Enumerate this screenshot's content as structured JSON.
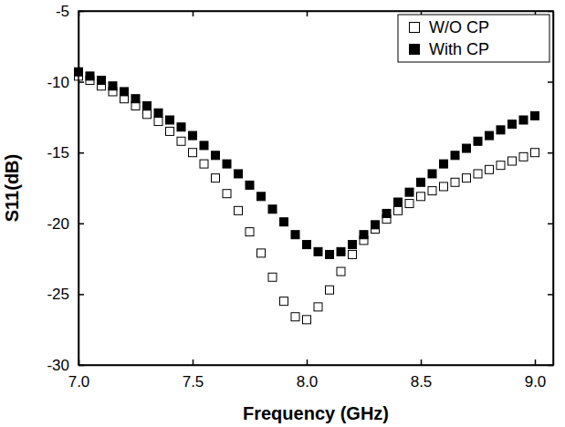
{
  "chart_data": {
    "type": "scatter",
    "x_label": "Frequency (GHz)",
    "y_label": "S11(dB)",
    "x": [
      7.0,
      7.05,
      7.1,
      7.15,
      7.2,
      7.25,
      7.3,
      7.35,
      7.4,
      7.45,
      7.5,
      7.55,
      7.6,
      7.65,
      7.7,
      7.75,
      7.8,
      7.85,
      7.9,
      7.95,
      8.0,
      8.05,
      8.1,
      8.15,
      8.2,
      8.25,
      8.3,
      8.35,
      8.4,
      8.45,
      8.5,
      8.55,
      8.6,
      8.65,
      8.7,
      8.75,
      8.8,
      8.85,
      8.9,
      8.95,
      9.0
    ],
    "series": [
      {
        "name": "W/O CP",
        "color": "#000000",
        "marker": "square-open",
        "values": [
          -9.6,
          -9.9,
          -10.3,
          -10.7,
          -11.2,
          -11.7,
          -12.3,
          -12.8,
          -13.5,
          -14.2,
          -15.0,
          -15.8,
          -16.8,
          -17.9,
          -19.1,
          -20.6,
          -22.1,
          -23.8,
          -25.5,
          -26.6,
          -26.8,
          -25.9,
          -24.7,
          -23.4,
          -22.2,
          -21.2,
          -20.4,
          -19.7,
          -19.1,
          -18.6,
          -18.1,
          -17.7,
          -17.4,
          -17.1,
          -16.8,
          -16.5,
          -16.2,
          -15.9,
          -15.6,
          -15.3,
          -15.0
        ]
      },
      {
        "name": "With CP",
        "color": "#000000",
        "marker": "square",
        "values": [
          -9.3,
          -9.6,
          -9.9,
          -10.3,
          -10.7,
          -11.2,
          -11.7,
          -12.2,
          -12.7,
          -13.2,
          -13.8,
          -14.5,
          -15.2,
          -15.8,
          -16.5,
          -17.3,
          -18.1,
          -19.0,
          -19.9,
          -20.8,
          -21.5,
          -22.0,
          -22.2,
          -22.0,
          -21.5,
          -20.8,
          -20.1,
          -19.3,
          -18.5,
          -17.8,
          -17.1,
          -16.5,
          -15.8,
          -15.2,
          -14.7,
          -14.2,
          -13.8,
          -13.4,
          -13.0,
          -12.7,
          -12.4
        ]
      }
    ],
    "xlim": [
      7.0,
      9.08
    ],
    "xticks": [
      {
        "value": 7.0,
        "label": "7.0"
      },
      {
        "value": 7.5,
        "label": "7.5"
      },
      {
        "value": 8.0,
        "label": "8.0"
      },
      {
        "value": 8.5,
        "label": "8.5"
      },
      {
        "value": 9.0,
        "label": "9.0"
      }
    ],
    "ylim": [
      -30,
      -5
    ],
    "yticks": [
      -30,
      -25,
      -20,
      -15,
      -10,
      -5
    ],
    "grid": false,
    "legend": "upper right"
  }
}
